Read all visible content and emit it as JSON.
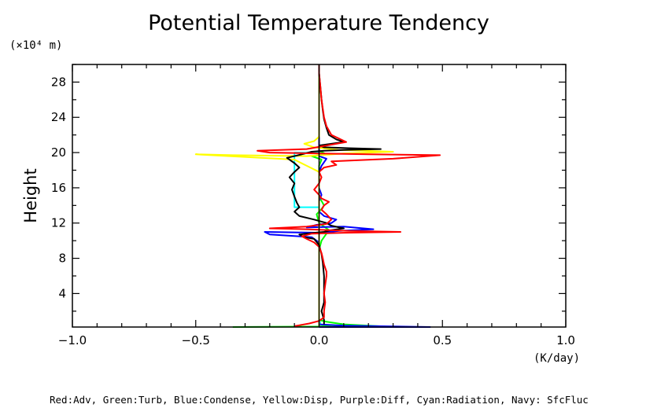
{
  "chart_data": {
    "type": "line",
    "title": "Potential Temperature Tendency",
    "ylabel": "Height",
    "yunit": "(×10⁴ m)",
    "xunit": "(K/day)",
    "xlim": [
      -1.0,
      1.0
    ],
    "ylim": [
      0.2,
      30
    ],
    "xticks": [
      -1.0,
      -0.5,
      0.0,
      0.5,
      1.0
    ],
    "xtick_labels": [
      "−1.0",
      "−0.5",
      "0.0",
      "0.5",
      "1.0"
    ],
    "yticks": [
      4,
      8,
      12,
      16,
      20,
      24,
      28
    ],
    "ytick_labels": [
      "4",
      "8",
      "12",
      "16",
      "20",
      "24",
      "28"
    ],
    "legend": "Red:Adv, Green:Turb, Blue:Condense, Yellow:Disp, Purple:Diff, Cyan:Radiation, Navy: SfcFluc",
    "grid": false,
    "series": [
      {
        "color": "#00ffff",
        "points": [
          [
            0.0,
            0.2
          ],
          [
            0.005,
            0.6
          ],
          [
            0.0,
            1.0
          ],
          [
            0.0,
            13.8
          ],
          [
            -0.1,
            13.8
          ],
          [
            -0.1,
            15.5
          ],
          [
            -0.1,
            17.0
          ],
          [
            -0.1,
            18.5
          ],
          [
            -0.1,
            20.0
          ],
          [
            -0.03,
            20.0
          ],
          [
            0.0,
            20.0
          ],
          [
            0.0,
            30.0
          ]
        ]
      },
      {
        "color": "#00ff00",
        "points": [
          [
            -0.35,
            0.2
          ],
          [
            0.0,
            0.25
          ],
          [
            0.05,
            0.4
          ],
          [
            0.12,
            0.3
          ],
          [
            0.27,
            0.25
          ],
          [
            0.1,
            0.5
          ],
          [
            0.03,
            0.8
          ],
          [
            0.0,
            1.0
          ],
          [
            0.0,
            9.0
          ],
          [
            0.01,
            10.0
          ],
          [
            0.03,
            10.8
          ],
          [
            0.04,
            11.2
          ],
          [
            0.02,
            11.6
          ],
          [
            0.0,
            12.0
          ],
          [
            -0.01,
            13.0
          ],
          [
            0.01,
            13.6
          ],
          [
            0.02,
            14.0
          ],
          [
            0.0,
            15.0
          ],
          [
            0.0,
            18.5
          ],
          [
            0.01,
            19.2
          ],
          [
            -0.03,
            19.6
          ],
          [
            0.03,
            19.8
          ],
          [
            0.0,
            20.2
          ],
          [
            0.0,
            30.0
          ]
        ]
      },
      {
        "color": "#0000ff",
        "points": [
          [
            0.0,
            0.2
          ],
          [
            0.45,
            0.2
          ],
          [
            0.1,
            0.35
          ],
          [
            0.0,
            0.5
          ],
          [
            0.0,
            9.8
          ],
          [
            -0.03,
            10.4
          ],
          [
            -0.2,
            10.7
          ],
          [
            -0.22,
            11.0
          ],
          [
            0.01,
            10.9
          ],
          [
            0.08,
            11.1
          ],
          [
            0.22,
            11.3
          ],
          [
            0.1,
            11.6
          ],
          [
            -0.05,
            11.5
          ],
          [
            -0.01,
            11.8
          ],
          [
            0.05,
            12.0
          ],
          [
            0.07,
            12.4
          ],
          [
            0.02,
            12.8
          ],
          [
            0.0,
            13.3
          ],
          [
            0.0,
            14.5
          ],
          [
            0.01,
            15.2
          ],
          [
            0.0,
            16.0
          ],
          [
            0.0,
            17.8
          ],
          [
            0.01,
            18.5
          ],
          [
            0.03,
            19.3
          ],
          [
            0.0,
            19.6
          ],
          [
            0.0,
            30.0
          ]
        ]
      },
      {
        "color": "#ffff00",
        "points": [
          [
            0.0,
            0.2
          ],
          [
            0.0,
            17.8
          ],
          [
            -0.05,
            18.5
          ],
          [
            -0.1,
            19.2
          ],
          [
            -0.5,
            19.8
          ],
          [
            -0.35,
            19.7
          ],
          [
            -0.05,
            19.6
          ],
          [
            0.1,
            19.9
          ],
          [
            0.3,
            20.1
          ],
          [
            0.08,
            20.3
          ],
          [
            -0.02,
            20.6
          ],
          [
            -0.06,
            21.0
          ],
          [
            -0.02,
            21.3
          ],
          [
            0.0,
            21.8
          ],
          [
            0.0,
            30.0
          ]
        ]
      },
      {
        "color": "#000000",
        "points": [
          [
            0.02,
            0.5
          ],
          [
            0.02,
            1.0
          ],
          [
            0.01,
            2.0
          ],
          [
            0.02,
            3.0
          ],
          [
            0.02,
            6.0
          ],
          [
            0.015,
            7.5
          ],
          [
            0.01,
            8.5
          ],
          [
            0.0,
            9.5
          ],
          [
            -0.02,
            10.2
          ],
          [
            -0.06,
            10.4
          ],
          [
            -0.08,
            10.7
          ],
          [
            -0.02,
            10.9
          ],
          [
            0.02,
            11.0
          ],
          [
            0.05,
            11.2
          ],
          [
            0.1,
            11.4
          ],
          [
            0.05,
            11.7
          ],
          [
            0.03,
            12.0
          ],
          [
            -0.02,
            12.4
          ],
          [
            -0.08,
            12.8
          ],
          [
            -0.1,
            13.3
          ],
          [
            -0.08,
            13.8
          ],
          [
            -0.09,
            14.3
          ],
          [
            -0.1,
            15.0
          ],
          [
            -0.11,
            15.8
          ],
          [
            -0.1,
            16.5
          ],
          [
            -0.12,
            17.2
          ],
          [
            -0.1,
            17.8
          ],
          [
            -0.08,
            18.3
          ],
          [
            -0.1,
            18.8
          ],
          [
            -0.13,
            19.4
          ],
          [
            -0.07,
            19.8
          ],
          [
            -0.03,
            20.1
          ],
          [
            0.02,
            20.2
          ],
          [
            0.1,
            20.3
          ],
          [
            0.25,
            20.4
          ],
          [
            0.12,
            20.5
          ],
          [
            0.02,
            20.6
          ],
          [
            0.0,
            20.8
          ],
          [
            0.05,
            21.0
          ],
          [
            0.1,
            21.2
          ],
          [
            0.07,
            21.5
          ],
          [
            0.04,
            22.0
          ],
          [
            0.03,
            22.8
          ],
          [
            0.02,
            23.8
          ],
          [
            0.015,
            24.8
          ],
          [
            0.01,
            26.0
          ],
          [
            0.005,
            27.5
          ],
          [
            0.0,
            29.0
          ],
          [
            0.0,
            30.0
          ]
        ]
      },
      {
        "color": "#ff0000",
        "points": [
          [
            -0.1,
            0.3
          ],
          [
            -0.04,
            0.6
          ],
          [
            0.0,
            0.9
          ],
          [
            0.02,
            1.3
          ],
          [
            0.02,
            2.0
          ],
          [
            0.025,
            3.0
          ],
          [
            0.02,
            4.0
          ],
          [
            0.025,
            5.0
          ],
          [
            0.03,
            6.0
          ],
          [
            0.03,
            6.5
          ],
          [
            0.02,
            7.3
          ],
          [
            0.015,
            8.0
          ],
          [
            0.01,
            8.6
          ],
          [
            0.0,
            9.3
          ],
          [
            -0.02,
            9.8
          ],
          [
            -0.05,
            10.2
          ],
          [
            -0.07,
            10.5
          ],
          [
            -0.03,
            10.8
          ],
          [
            0.1,
            10.9
          ],
          [
            0.33,
            11.0
          ],
          [
            0.12,
            11.1
          ],
          [
            -0.05,
            11.3
          ],
          [
            -0.2,
            11.4
          ],
          [
            -0.05,
            11.6
          ],
          [
            0.03,
            11.9
          ],
          [
            0.05,
            12.4
          ],
          [
            0.03,
            13.0
          ],
          [
            0.01,
            13.5
          ],
          [
            0.02,
            14.0
          ],
          [
            0.04,
            14.4
          ],
          [
            0.01,
            14.8
          ],
          [
            0.0,
            15.2
          ],
          [
            -0.02,
            15.8
          ],
          [
            0.0,
            16.5
          ],
          [
            0.01,
            17.2
          ],
          [
            0.0,
            17.8
          ],
          [
            0.02,
            18.3
          ],
          [
            0.07,
            18.6
          ],
          [
            0.05,
            19.0
          ],
          [
            0.3,
            19.3
          ],
          [
            0.49,
            19.7
          ],
          [
            0.2,
            19.8
          ],
          [
            0.0,
            19.9
          ],
          [
            -0.2,
            20.0
          ],
          [
            -0.25,
            20.2
          ],
          [
            -0.05,
            20.4
          ],
          [
            0.03,
            20.8
          ],
          [
            0.11,
            21.2
          ],
          [
            0.08,
            21.6
          ],
          [
            0.05,
            22.0
          ],
          [
            0.03,
            23.0
          ],
          [
            0.02,
            24.0
          ],
          [
            0.015,
            25.0
          ],
          [
            0.01,
            26.0
          ],
          [
            0.005,
            27.5
          ],
          [
            0.0,
            29.0
          ],
          [
            0.0,
            30.0
          ]
        ]
      }
    ]
  }
}
